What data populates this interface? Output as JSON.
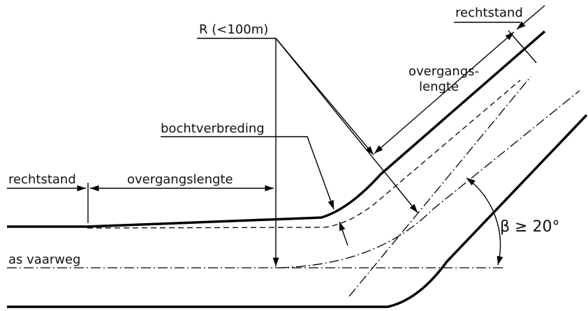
{
  "labels": {
    "rechtstand_top": "rechtstand",
    "radius": "R (<100m)",
    "transition_top_1": "overgangs-",
    "transition_top_2": "lengte",
    "widening": "bochtverbreding",
    "rechtstand_left": "rechtstand",
    "transition_left": "overgangslengte",
    "axis": "as vaarweg",
    "angle": "β ≥ 20°"
  }
}
